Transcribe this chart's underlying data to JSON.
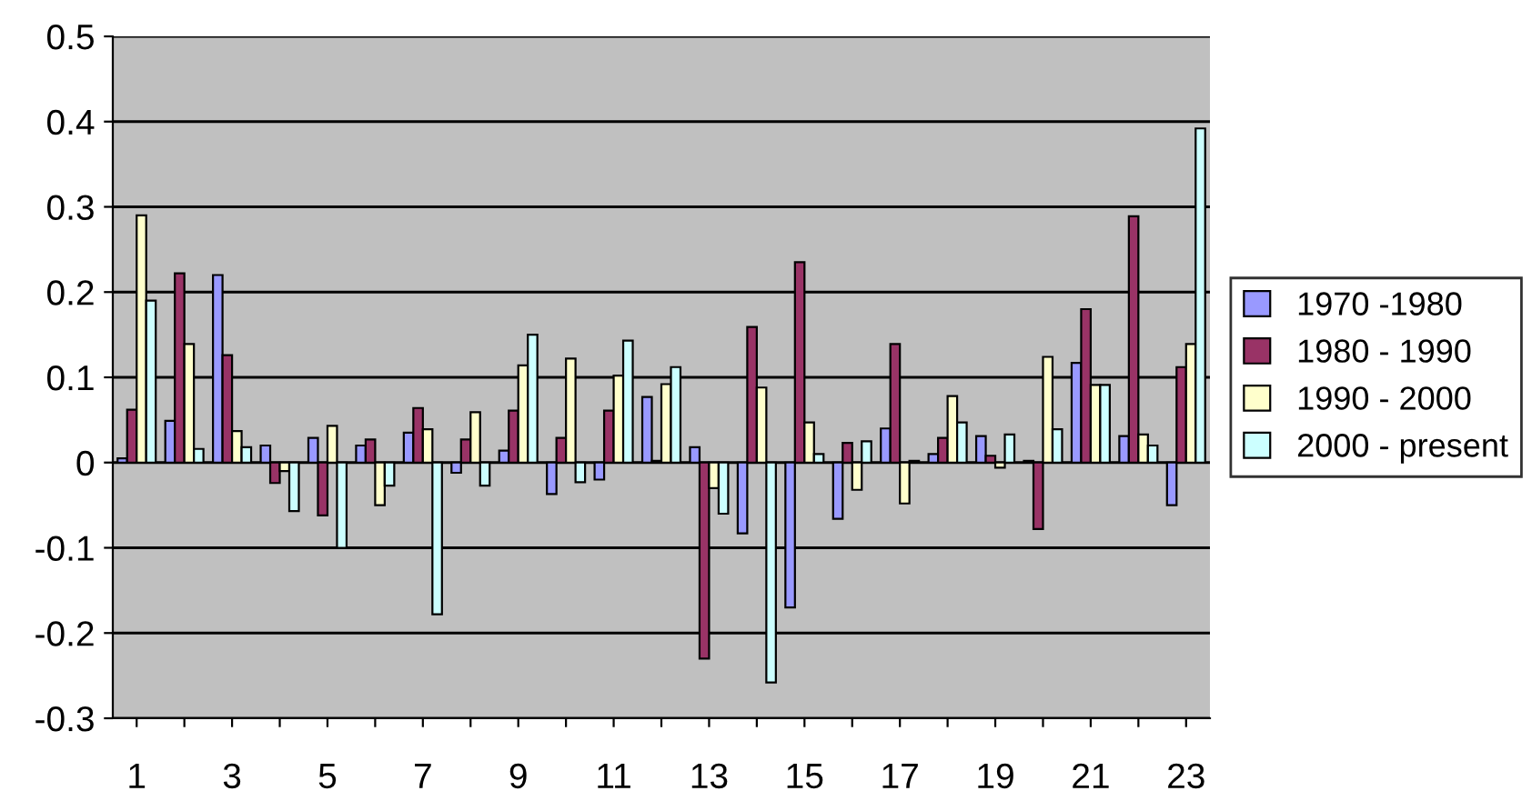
{
  "chart_data": {
    "type": "bar",
    "categories": [
      "1",
      null,
      "3",
      null,
      "5",
      null,
      "7",
      null,
      "9",
      null,
      "11",
      null,
      "13",
      null,
      "15",
      null,
      "17",
      null,
      "19",
      null,
      "21",
      null,
      "23"
    ],
    "series": [
      {
        "name": "1970 -1980",
        "color": "#9999ff",
        "values": [
          0.005,
          0.049,
          0.22,
          0.02,
          0.029,
          0.02,
          0.035,
          -0.012,
          0.014,
          -0.037,
          -0.02,
          0.077,
          0.018,
          -0.083,
          -0.17,
          -0.066,
          0.04,
          0.01,
          0.031,
          0.002,
          0.117,
          0.031,
          -0.05
        ]
      },
      {
        "name": "1980 - 1990",
        "color": "#993366",
        "values": [
          0.062,
          0.222,
          0.126,
          -0.024,
          -0.062,
          0.027,
          0.064,
          0.027,
          0.061,
          0.029,
          0.061,
          0.002,
          -0.23,
          0.159,
          0.235,
          0.023,
          0.139,
          0.029,
          0.008,
          -0.078,
          0.18,
          0.289,
          0.112
        ]
      },
      {
        "name": "1990 - 2000",
        "color": "#ffffcc",
        "values": [
          0.29,
          0.139,
          0.037,
          -0.01,
          0.043,
          -0.05,
          0.039,
          0.059,
          0.114,
          0.122,
          0.102,
          0.092,
          -0.03,
          0.088,
          0.047,
          -0.032,
          -0.048,
          0.078,
          -0.006,
          0.124,
          0.091,
          0.033,
          0.139
        ]
      },
      {
        "name": "2000 - present",
        "color": "#ccffff",
        "values": [
          0.19,
          0.016,
          0.018,
          -0.057,
          -0.1,
          -0.027,
          -0.178,
          -0.027,
          0.15,
          -0.023,
          0.143,
          0.112,
          -0.06,
          -0.258,
          0.01,
          0.025,
          0.002,
          0.047,
          0.033,
          0.039,
          0.091,
          0.02,
          0.392
        ]
      }
    ],
    "ylim": [
      -0.3,
      0.5
    ],
    "yticks": [
      -0.3,
      -0.2,
      -0.1,
      0,
      0.1,
      0.2,
      0.3,
      0.4,
      0.5
    ],
    "grid": "y",
    "legend": "right"
  }
}
